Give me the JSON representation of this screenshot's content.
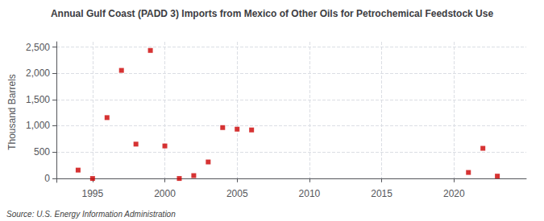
{
  "chart_data": {
    "type": "scatter",
    "title": "Annual Gulf Coast (PADD 3) Imports from Mexico of Other Oils for Petrochemical Feedstock Use",
    "ylabel": "Thousand Barrels",
    "source": "Source: U.S. Energy Information Administration",
    "x": [
      1994,
      1995,
      1996,
      1997,
      1998,
      1999,
      2000,
      2001,
      2002,
      2003,
      2004,
      2005,
      2006,
      2021,
      2022,
      2023
    ],
    "values": [
      155,
      -5,
      1155,
      2055,
      650,
      2435,
      615,
      -5,
      50,
      310,
      965,
      935,
      920,
      110,
      570,
      40
    ],
    "color": "#cc0000",
    "marker": "square",
    "xlim": [
      1992.5,
      2025
    ],
    "xticks": [
      1995,
      2000,
      2005,
      2010,
      2015,
      2020
    ],
    "ylim": [
      -80,
      2600
    ],
    "yticks": [
      0,
      500,
      {
        "value": 1000,
        "label": "1,000"
      },
      {
        "value": 1500,
        "label": "1,500"
      },
      {
        "value": 2000,
        "label": "2,000"
      },
      {
        "value": 2500,
        "label": "2,500"
      }
    ],
    "grid": true
  }
}
